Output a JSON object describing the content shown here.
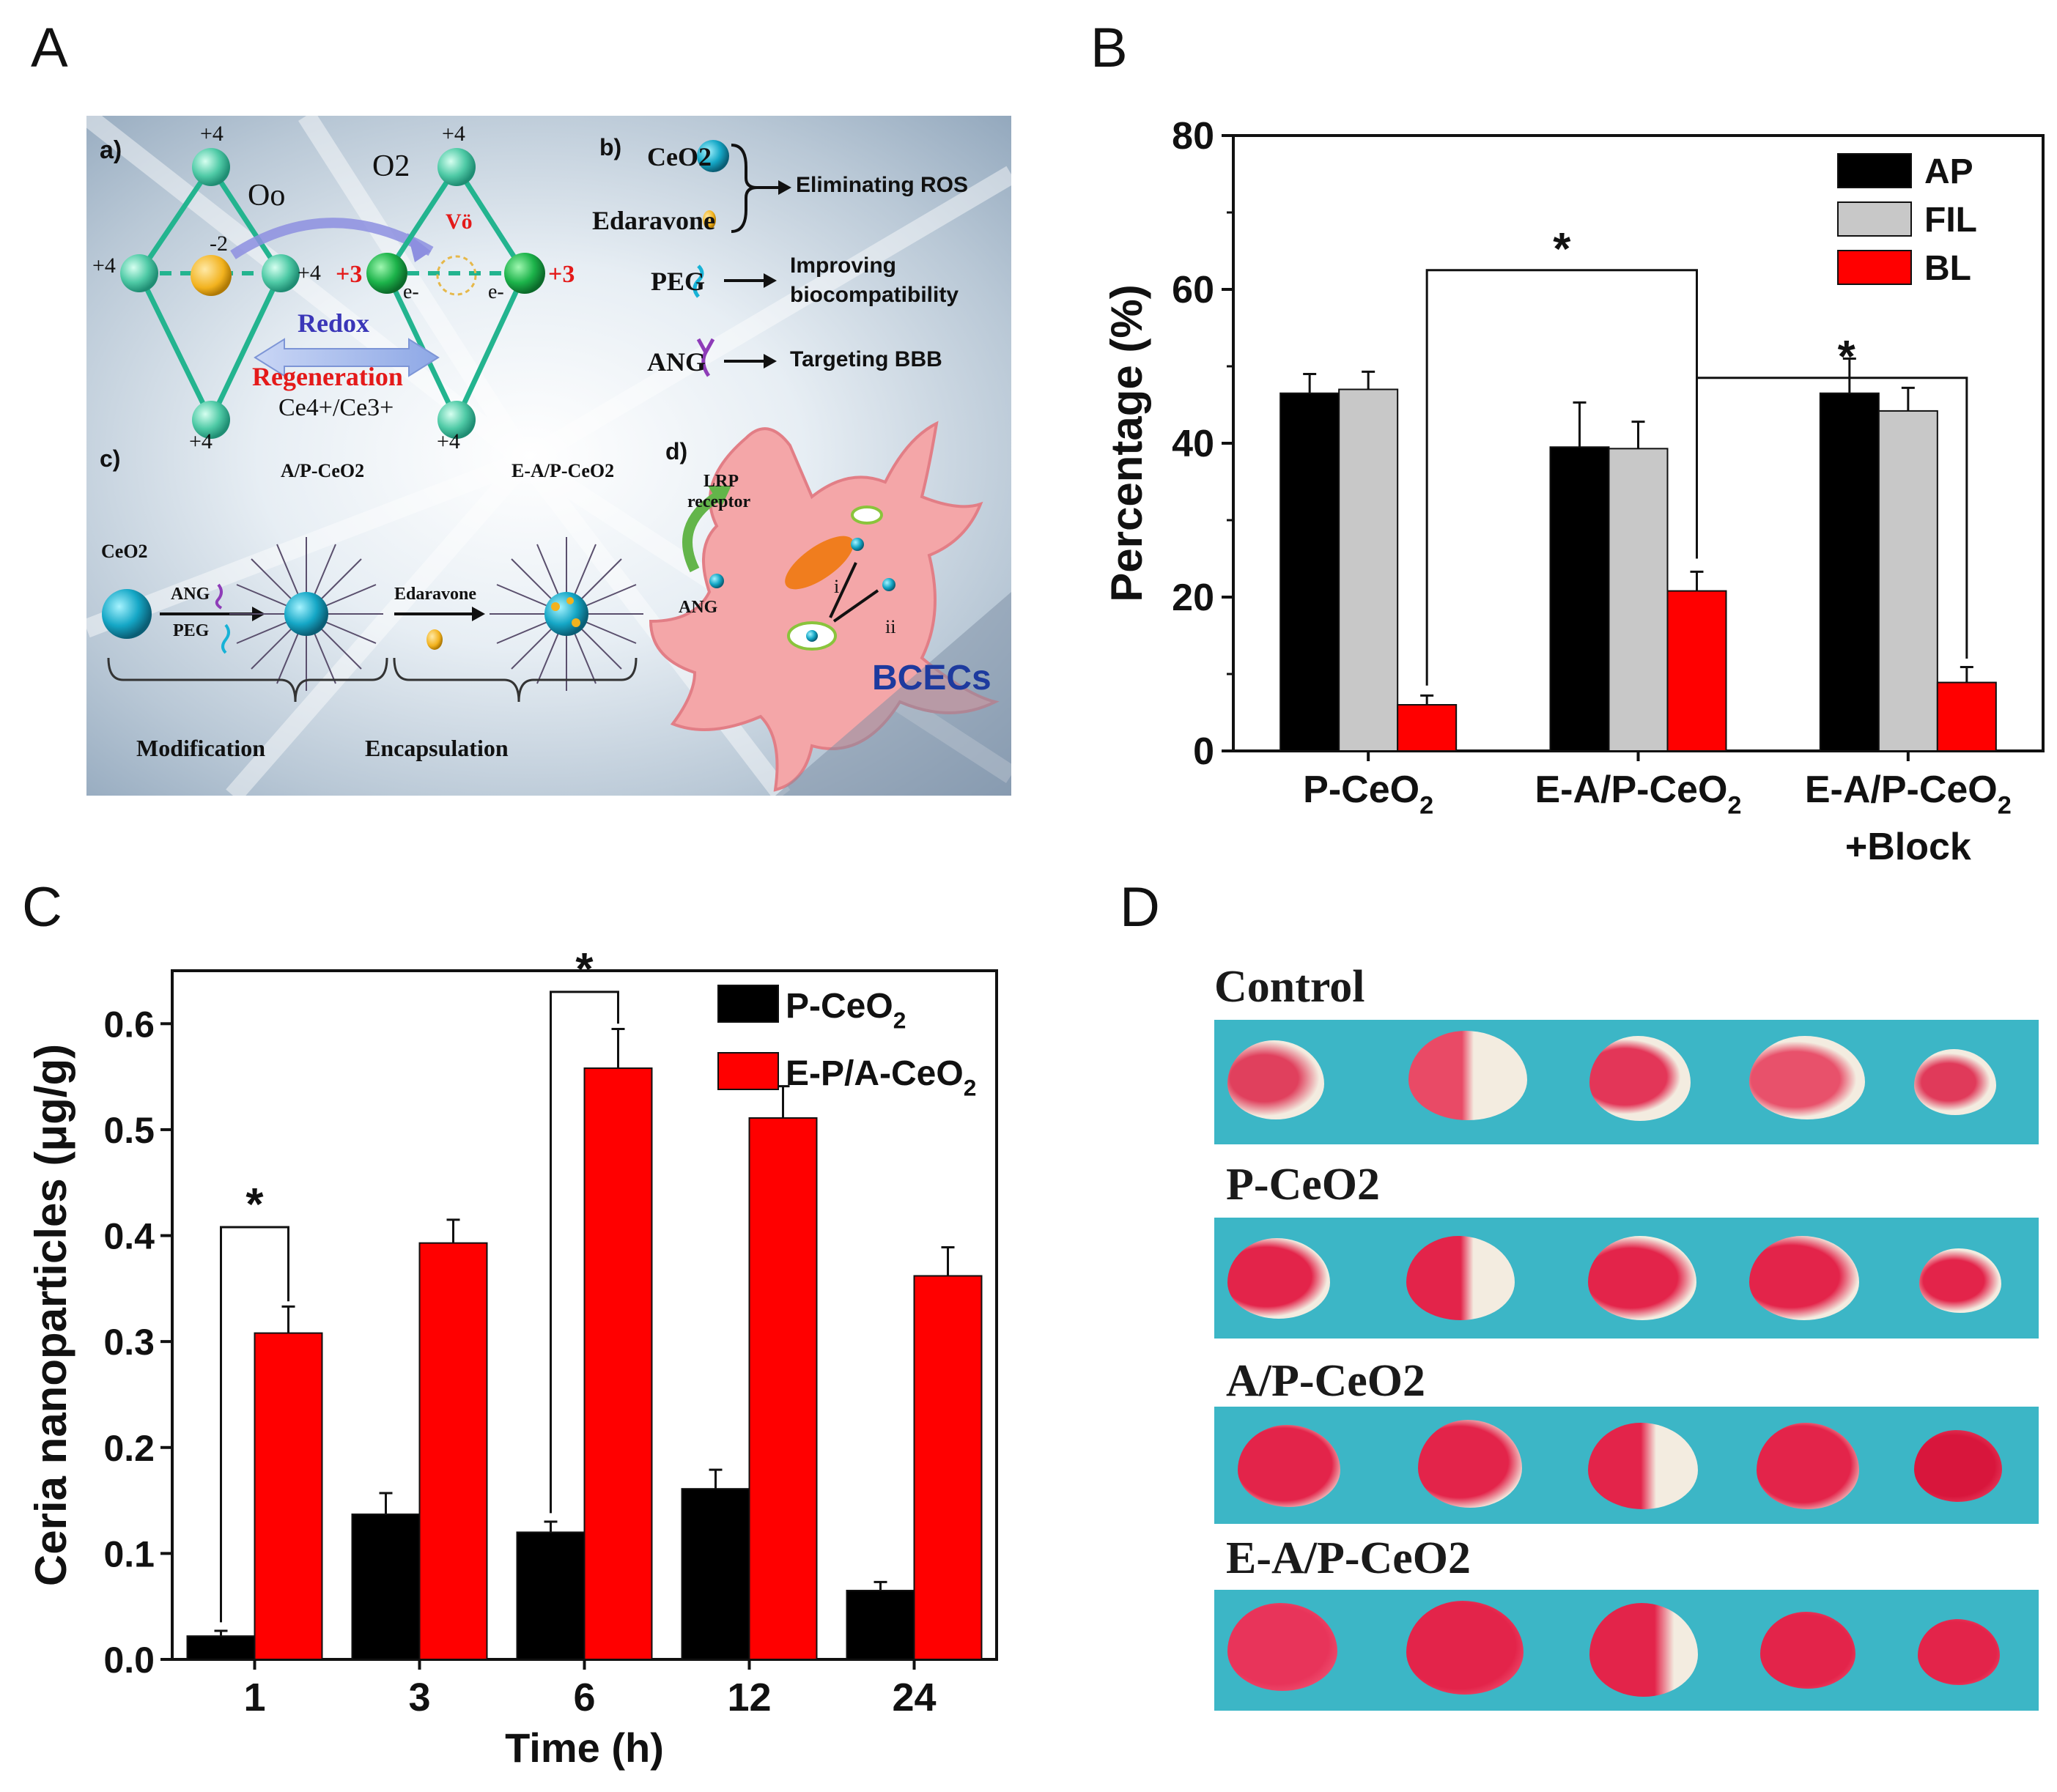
{
  "panels": {
    "A": "A",
    "B": "B",
    "C": "C",
    "D": "D"
  },
  "schematic": {
    "a": {
      "label": "a)",
      "oxidation_top_left": "+4",
      "oxidation_left": "+4",
      "oxidation_right": "+4",
      "oxidation_bottom_left": "+4",
      "charge_center": "-2",
      "oxygen_site": "Oo",
      "oxygen": "O2",
      "vacancy": "Vö",
      "oxidation_top_right": "+4",
      "oxidation_bottom_right": "+4",
      "reduced_left": "+3",
      "reduced_right": "+3",
      "electron_left": "e-",
      "electron_right": "e-",
      "redox": "Redox",
      "regeneration": "Regeneration",
      "couple": "Ce4+/Ce3+"
    },
    "b": {
      "label": "b)",
      "ceo2": "CeO2",
      "edaravone": "Edaravone",
      "eliminating_ros": "Eliminating ROS",
      "peg": "PEG",
      "improving": "Improving",
      "biocompatibility": "biocompatibility",
      "ang": "ANG",
      "targeting": "Targeting BBB"
    },
    "c": {
      "label": "c)",
      "ceo2": "CeO2",
      "ap_ceo2": "A/P-CeO2",
      "eap_ceo2": "E-A/P-CeO2",
      "ang": "ANG",
      "peg": "PEG",
      "edaravone": "Edaravone",
      "modification": "Modification",
      "encapsulation": "Encapsulation"
    },
    "d": {
      "label": "d)",
      "lrp": "LRP",
      "receptor": "receptor",
      "ang": "ANG",
      "i": "i",
      "ii": "ii",
      "bcecs": "BCECs"
    }
  },
  "chart_data": [
    {
      "panel": "B",
      "type": "bar",
      "categories": [
        "P-CeO2",
        "E-A/P-CeO2",
        "E-A/P-CeO2 +Block"
      ],
      "series": [
        {
          "name": "AP",
          "color": "#000000",
          "values": [
            46.5,
            39.5,
            46.5
          ],
          "errors": [
            2.5,
            5.8,
            4.5
          ]
        },
        {
          "name": "FIL",
          "color": "#c8c8c8",
          "values": [
            47.0,
            39.3,
            44.2
          ],
          "errors": [
            2.3,
            3.5,
            3.0
          ]
        },
        {
          "name": "BL",
          "color": "#ff0000",
          "values": [
            6.0,
            20.8,
            8.9
          ],
          "errors": [
            1.2,
            2.5,
            2.0
          ]
        }
      ],
      "ylabel": "Percentage (%)",
      "xlabel": "",
      "ylim": [
        0,
        80
      ],
      "yticks": [
        0,
        20,
        40,
        60,
        80
      ],
      "significance": [
        {
          "from": "P-CeO2 BL",
          "to": "E-A/P-CeO2 BL",
          "label": "*"
        },
        {
          "from": "E-A/P-CeO2 BL",
          "to": "E-A/P-CeO2 +Block BL",
          "label": "*"
        }
      ],
      "legend_position": "top-right"
    },
    {
      "panel": "C",
      "type": "bar",
      "categories": [
        "1",
        "3",
        "6",
        "12",
        "24"
      ],
      "series": [
        {
          "name": "P-CeO2",
          "color": "#000000",
          "values": [
            0.022,
            0.137,
            0.12,
            0.161,
            0.065
          ],
          "errors": [
            0.005,
            0.02,
            0.01,
            0.018,
            0.008
          ]
        },
        {
          "name": "E-P/A-CeO2",
          "color": "#ff0000",
          "values": [
            0.308,
            0.393,
            0.558,
            0.511,
            0.362
          ],
          "errors": [
            0.025,
            0.022,
            0.037,
            0.03,
            0.027
          ]
        }
      ],
      "xlabel": "Time (h)",
      "ylabel": "Ceria nanoparticles (μg/g)",
      "ylim": [
        0,
        0.65
      ],
      "yticks": [
        "0.0",
        "0.1",
        "0.2",
        "0.3",
        "0.4",
        "0.5",
        "0.6"
      ],
      "significance": [
        {
          "category": "1",
          "label": "*"
        },
        {
          "category": "6",
          "label": "*"
        }
      ],
      "legend_position": "top-right"
    }
  ],
  "brain_panel": {
    "rows": [
      {
        "label": "Control"
      },
      {
        "label": "P-CeO2"
      },
      {
        "label": "A/P-CeO2"
      },
      {
        "label": "E-A/P-CeO2"
      }
    ]
  },
  "colors": {
    "teal_bg": "#3cb6c6",
    "infarct_red": "#e8214a",
    "tissue_white": "#f4efe6"
  }
}
